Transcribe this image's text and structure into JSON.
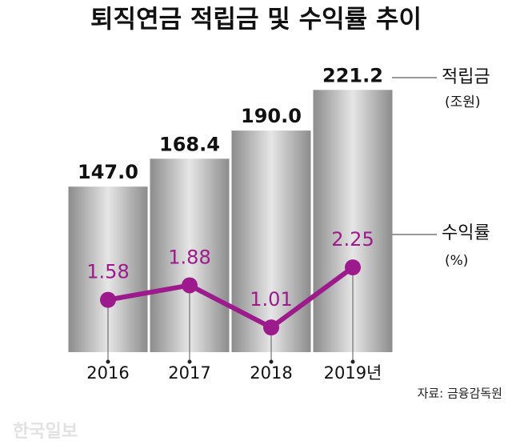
{
  "chart_data": {
    "type": "bar",
    "title": "퇴직연금 적립금 및 수익률 추이",
    "categories": [
      "2016",
      "2017",
      "2018",
      "2019년"
    ],
    "series": [
      {
        "name": "적립금",
        "unit": "(조원)",
        "type": "bar",
        "color": "#9a9a9a",
        "values": [
          147,
          168.4,
          190,
          221.2
        ],
        "value_labels": [
          "147.0",
          "168.4",
          "190.0",
          "221.2"
        ]
      },
      {
        "name": "수익률",
        "unit": "(%)",
        "type": "line",
        "axis": "y2",
        "color": "#9c1a8c",
        "values": [
          1.58,
          1.88,
          1.01,
          2.25
        ]
      }
    ],
    "ylim": [
      20,
      230
    ],
    "y2lim": [
      0.5,
      6.15
    ],
    "source": "자료: 금융감독원",
    "watermark": "한국일보"
  }
}
